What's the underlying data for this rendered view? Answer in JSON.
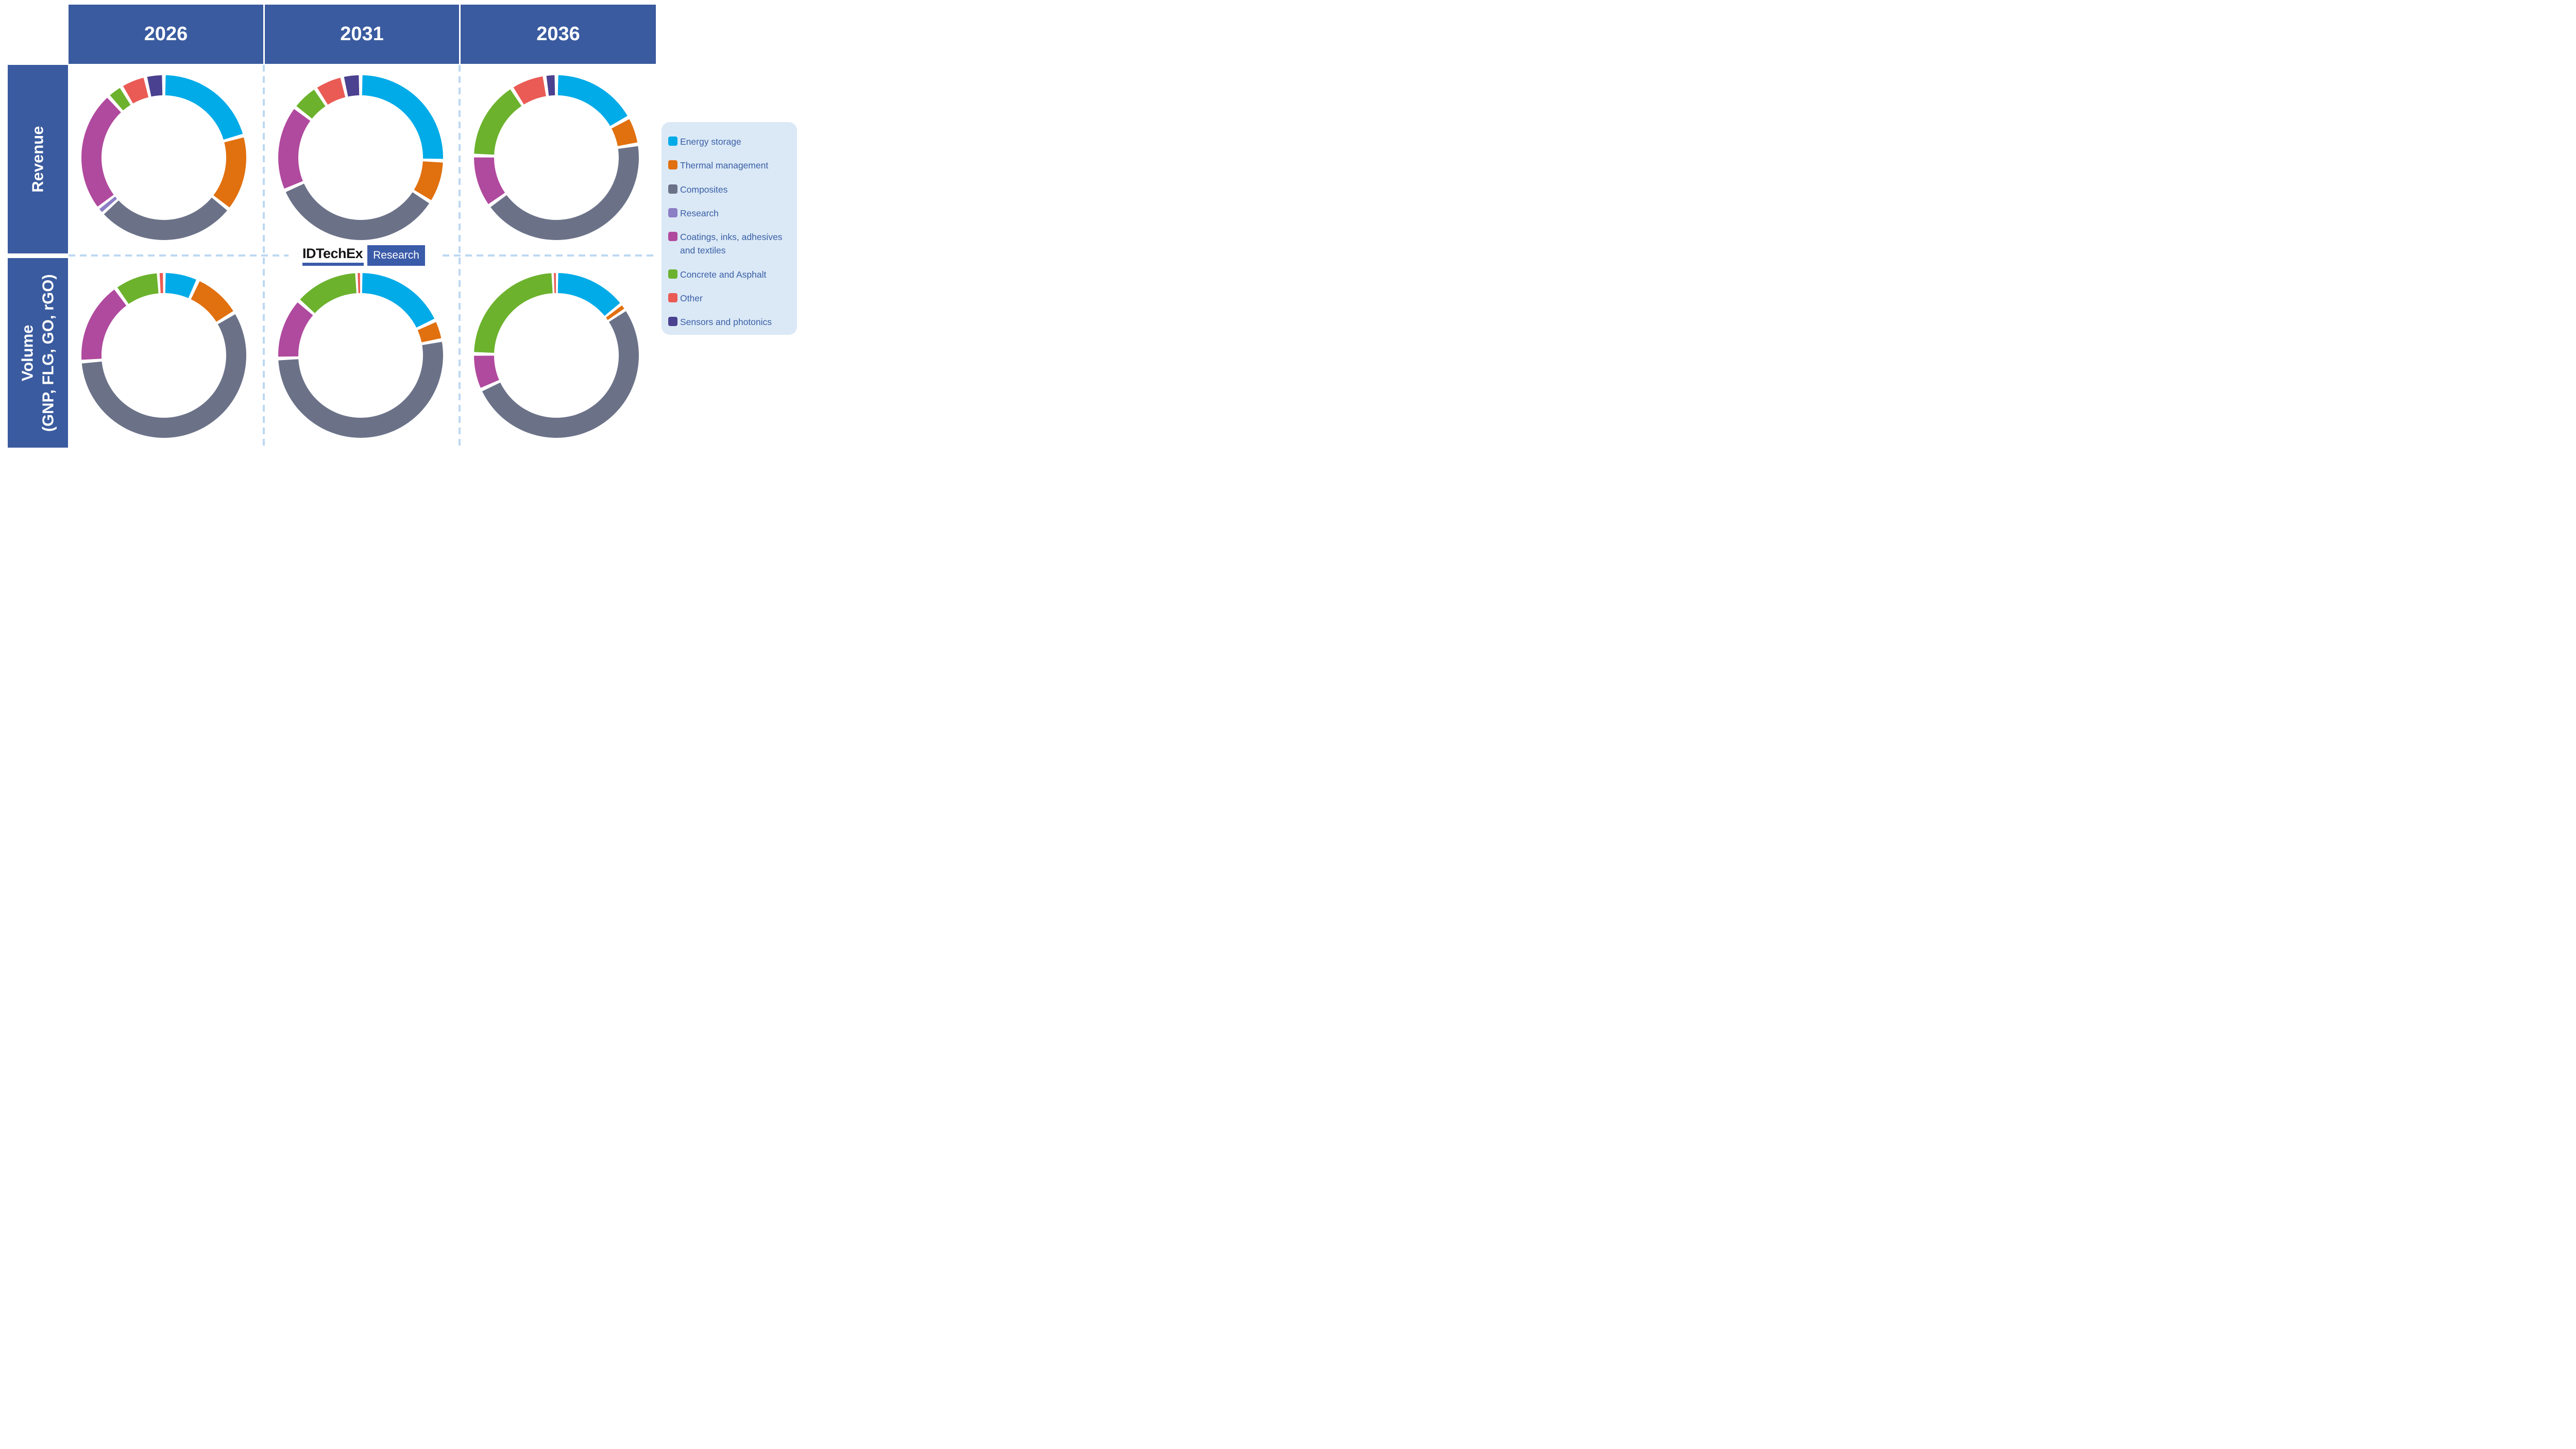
{
  "header": {
    "columns": [
      "2026",
      "2031",
      "2036"
    ]
  },
  "rows": [
    {
      "title": "Revenue",
      "subtitle": ""
    },
    {
      "title": "Volume",
      "subtitle": "(GNP, FLG, GO, rGO)"
    }
  ],
  "legend": {
    "items": [
      {
        "label": "Energy storage",
        "color": "#00abe8"
      },
      {
        "label": "Thermal management",
        "color": "#e1700f"
      },
      {
        "label": "Composites",
        "color": "#6b7288"
      },
      {
        "label": "Research",
        "color": "#8b7ec5"
      },
      {
        "label": "Coatings, inks, adhesives and textiles",
        "color": "#b04a9e"
      },
      {
        "label": "Concrete and Asphalt",
        "color": "#6cb22d"
      },
      {
        "label": "Other",
        "color": "#ea5b55"
      },
      {
        "label": "Sensors and photonics",
        "color": "#4a4190"
      }
    ]
  },
  "logo": {
    "brand": "IDTechEx",
    "tag": "Research"
  },
  "colors": {
    "table_blue": "#3a5b9f",
    "legend_background": "#dbe9f6",
    "legend_text": "#3a5fa6",
    "dashed_line": "#bdd8f1",
    "logo_blue": "#3a5ba8"
  },
  "chart_data": [
    {
      "type": "pie",
      "row": "Revenue",
      "column": "2026",
      "categories": [
        "Energy storage",
        "Thermal management",
        "Composites",
        "Research",
        "Coatings, inks, adhesives and textiles",
        "Concrete and Asphalt",
        "Other",
        "Sensors and photonics"
      ],
      "values": [
        20.7,
        15.0,
        27.6,
        1.2,
        23.8,
        3.1,
        5.0,
        3.6
      ],
      "units": "percent share of ring, clockwise from top",
      "legend_position": "right"
    },
    {
      "type": "pie",
      "row": "Revenue",
      "column": "2031",
      "categories": [
        "Energy storage",
        "Thermal management",
        "Composites",
        "Research",
        "Coatings, inks, adhesives and textiles",
        "Concrete and Asphalt",
        "Other",
        "Sensors and photonics"
      ],
      "values": [
        25.6,
        8.4,
        34.5,
        0,
        16.9,
        5.4,
        5.6,
        3.6
      ],
      "units": "percent share of ring, clockwise from top",
      "legend_position": "right"
    },
    {
      "type": "pie",
      "row": "Revenue",
      "column": "2036",
      "categories": [
        "Energy storage",
        "Thermal management",
        "Composites",
        "Research",
        "Coatings, inks, adhesives and textiles",
        "Concrete and Asphalt",
        "Other",
        "Sensors and photonics"
      ],
      "values": [
        16.9,
        5.5,
        42.7,
        0,
        10.3,
        15.5,
        6.8,
        2.3
      ],
      "units": "percent share of ring, clockwise from top",
      "legend_position": "right"
    },
    {
      "type": "pie",
      "row": "Volume",
      "column": "2026",
      "categories": [
        "Energy storage",
        "Thermal management",
        "Composites",
        "Research",
        "Coatings, inks, adhesives and textiles",
        "Concrete and Asphalt",
        "Other",
        "Sensors and photonics"
      ],
      "values": [
        6.8,
        9.5,
        57.5,
        0,
        16.3,
        8.9,
        1.0,
        0
      ],
      "units": "percent share of ring, clockwise from top",
      "legend_position": "right"
    },
    {
      "type": "pie",
      "row": "Volume",
      "column": "2031",
      "categories": [
        "Energy storage",
        "Thermal management",
        "Composites",
        "Research",
        "Coatings, inks, adhesives and textiles",
        "Concrete and Asphalt",
        "Other",
        "Sensors and photonics"
      ],
      "values": [
        18.0,
        4.0,
        52.4,
        0,
        12.1,
        12.8,
        0.7,
        0
      ],
      "units": "percent share of ring, clockwise from top",
      "legend_position": "right"
    },
    {
      "type": "pie",
      "row": "Volume",
      "column": "2036",
      "categories": [
        "Energy storage",
        "Thermal management",
        "Composites",
        "Research",
        "Coatings, inks, adhesives and textiles",
        "Concrete and Asphalt",
        "Other",
        "Sensors and photonics"
      ],
      "values": [
        14.4,
        1.2,
        52.6,
        0,
        7.1,
        24.1,
        0.6,
        0
      ],
      "units": "percent share of ring, clockwise from top",
      "legend_position": "right"
    }
  ]
}
